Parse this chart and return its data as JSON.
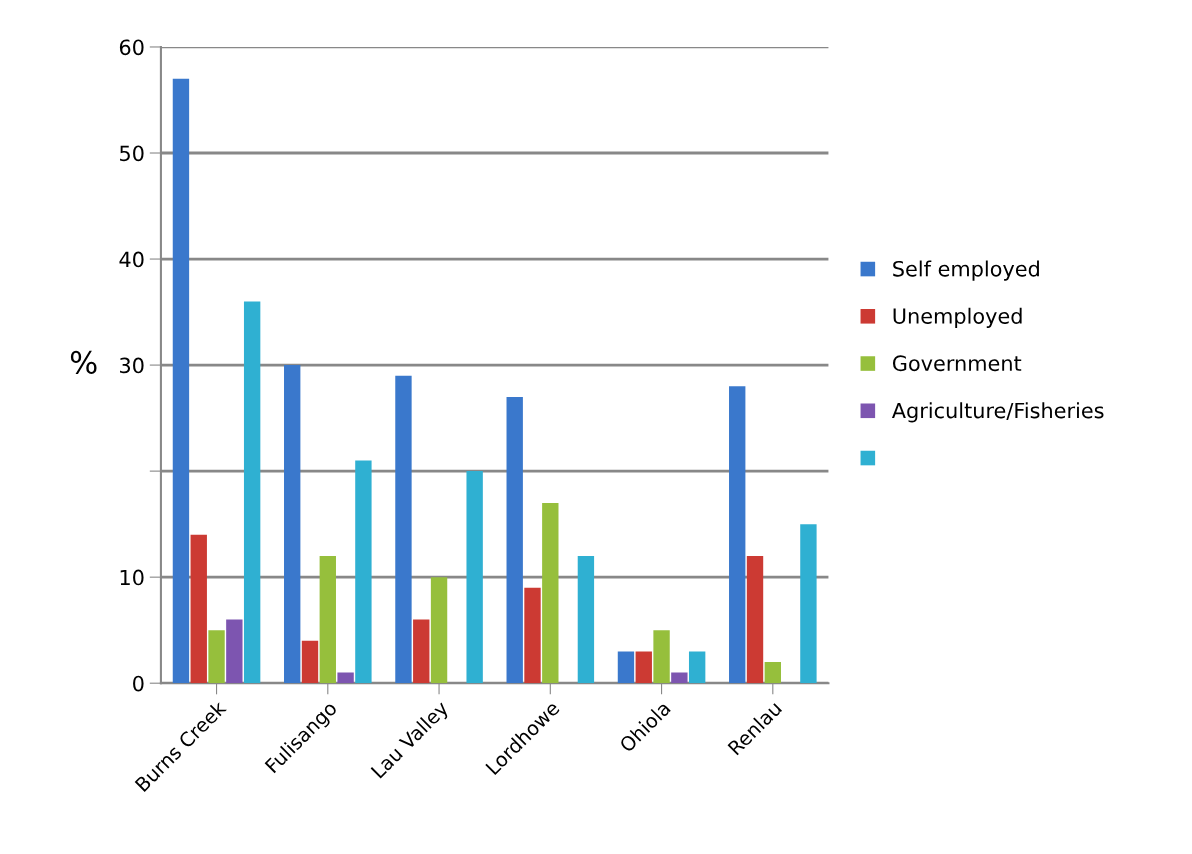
{
  "chart_data": {
    "type": "bar",
    "ylabel": "%",
    "categories": [
      "Burns Creek",
      "Fulisango",
      "Lau Valley",
      "Lordhowe",
      "Ohiola",
      "Renlau"
    ],
    "series": [
      {
        "name": "Self employed",
        "color": "#3a78cc",
        "values": [
          57,
          30,
          29,
          27,
          3,
          28
        ]
      },
      {
        "name": "Unemployed",
        "color": "#cc3a33",
        "values": [
          14,
          4,
          6,
          9,
          3,
          12
        ]
      },
      {
        "name": "Government",
        "color": "#96bf3c",
        "values": [
          5,
          12,
          10,
          17,
          5,
          2
        ]
      },
      {
        "name": "Agriculture/Fisheries",
        "color": "#7d55b0",
        "values": [
          6,
          1,
          0,
          0,
          1,
          0
        ]
      },
      {
        "color": "#2fb0d2",
        "values": [
          36,
          21,
          20,
          12,
          3,
          15
        ]
      }
    ],
    "ylim": [
      0,
      60
    ],
    "yticks": [
      0,
      10,
      {
        "value": 20,
        "label": null
      },
      30,
      40,
      50,
      60
    ],
    "grid": "y",
    "legend": "right"
  }
}
